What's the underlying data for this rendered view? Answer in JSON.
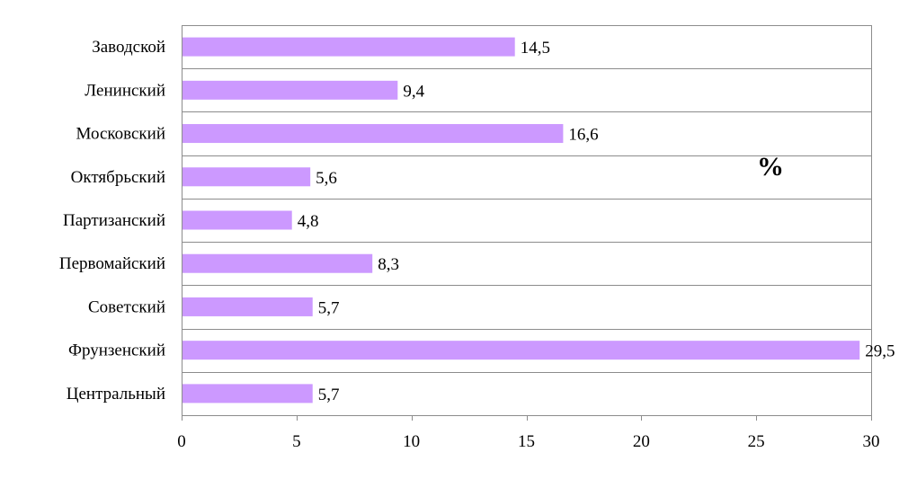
{
  "chart_data": {
    "type": "bar",
    "orientation": "horizontal",
    "categories": [
      "Заводской",
      "Ленинский",
      "Московский",
      "Октябрьский",
      "Партизанский",
      "Первомайский",
      "Советский",
      "Фрунзенский",
      "Центральный"
    ],
    "values": [
      14.5,
      9.4,
      16.6,
      5.6,
      4.8,
      8.3,
      5.7,
      29.5,
      5.7
    ],
    "data_labels": [
      "14,5",
      "9,4",
      "16,6",
      "5,6",
      "4,8",
      "8,3",
      "5,7",
      "29,5",
      "5,7"
    ],
    "xlim": [
      0,
      30
    ],
    "x_ticks": [
      0,
      5,
      10,
      15,
      20,
      25,
      30
    ],
    "x_tick_labels": [
      "0",
      "5",
      "10",
      "15",
      "20",
      "25",
      "30"
    ],
    "unit_label": "%",
    "bar_color": "#cc99ff",
    "grid": true,
    "legend": "none"
  }
}
